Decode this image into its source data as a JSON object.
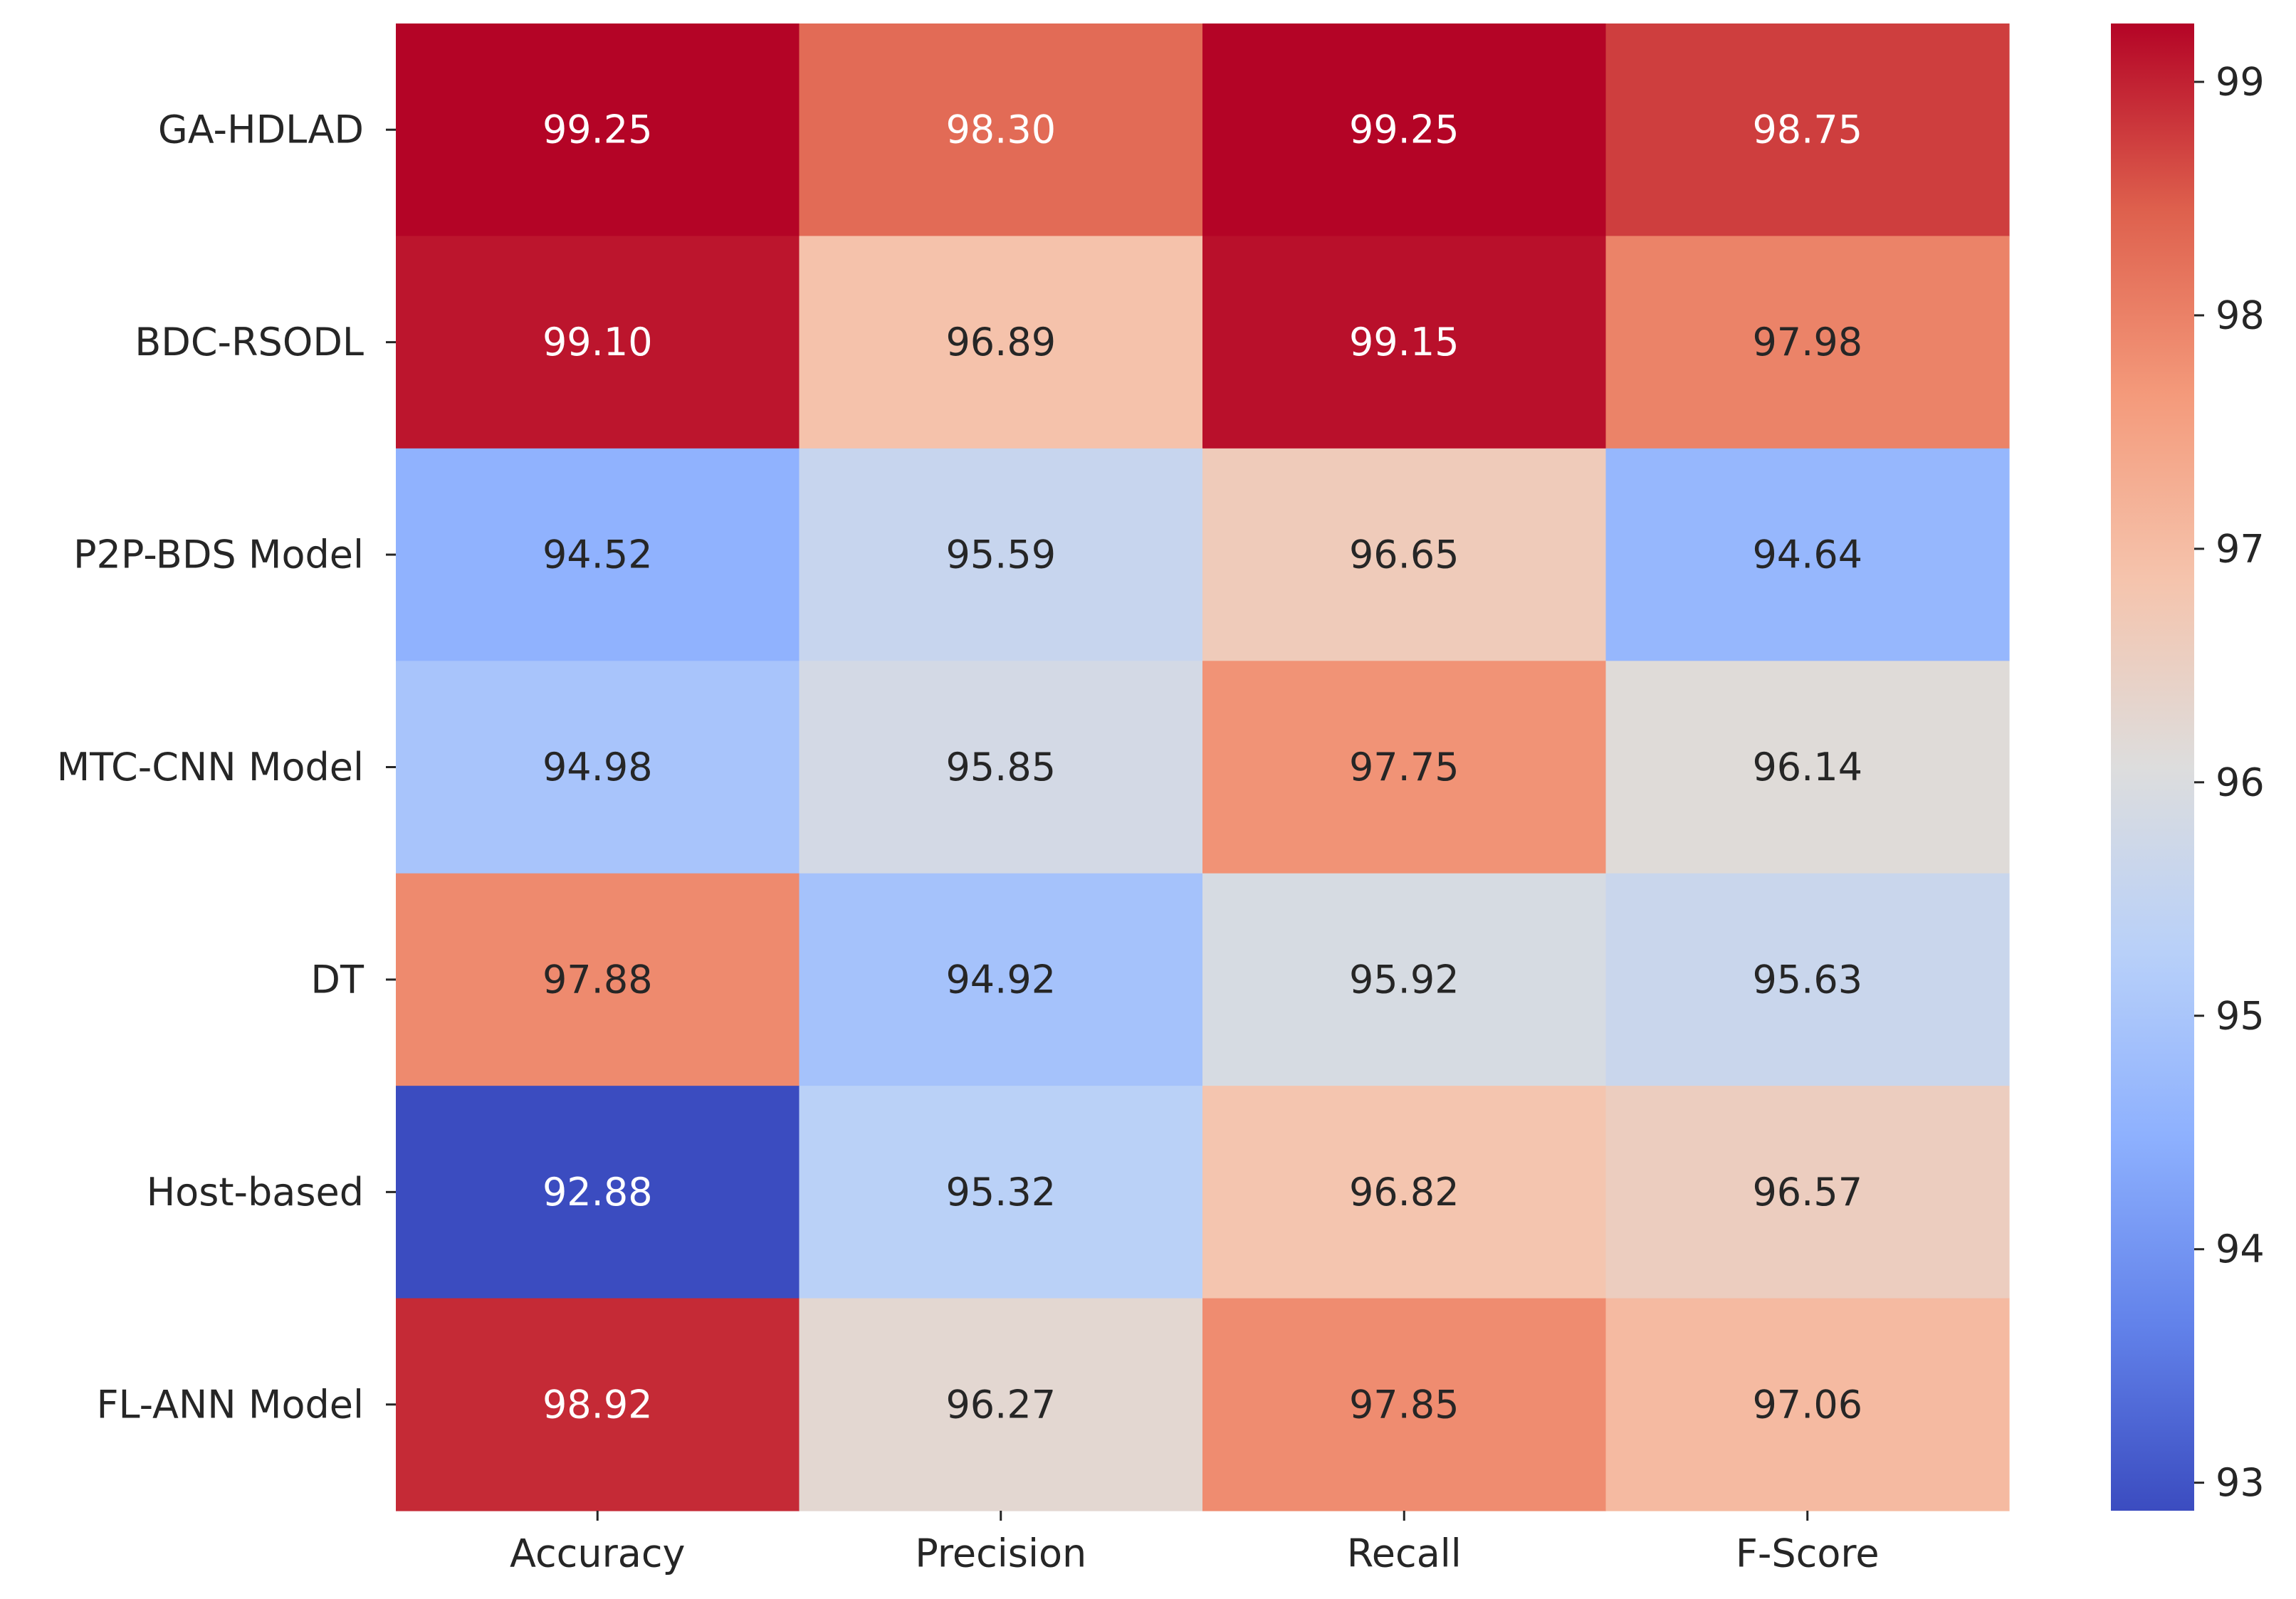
{
  "chart_data": {
    "type": "heatmap",
    "title": "",
    "xlabel": "",
    "ylabel": "",
    "columns": [
      "Accuracy",
      "Precision",
      "Recall",
      "F-Score"
    ],
    "rows": [
      "GA-HDLAD",
      "BDC-RSODL",
      "P2P-BDS Model",
      "MTC-CNN Model",
      "DT",
      "Host-based",
      "FL-ANN Model"
    ],
    "values": [
      [
        99.25,
        98.3,
        99.25,
        98.75
      ],
      [
        99.1,
        96.89,
        99.15,
        97.98
      ],
      [
        94.52,
        95.59,
        96.65,
        94.64
      ],
      [
        94.98,
        95.85,
        97.75,
        96.14
      ],
      [
        97.88,
        94.92,
        95.92,
        95.63
      ],
      [
        92.88,
        95.32,
        96.82,
        96.57
      ],
      [
        98.92,
        96.27,
        97.85,
        97.06
      ]
    ],
    "annotations": [
      [
        "99.25",
        "98.30",
        "99.25",
        "98.75"
      ],
      [
        "99.10",
        "96.89",
        "99.15",
        "97.98"
      ],
      [
        "94.52",
        "95.59",
        "96.65",
        "94.64"
      ],
      [
        "94.98",
        "95.85",
        "97.75",
        "96.14"
      ],
      [
        "97.88",
        "94.92",
        "95.92",
        "95.63"
      ],
      [
        "92.88",
        "95.32",
        "96.82",
        "96.57"
      ],
      [
        "98.92",
        "96.27",
        "97.85",
        "97.06"
      ]
    ],
    "colormap": "coolwarm",
    "vmin": 92.88,
    "vmax": 99.25,
    "colorbar": {
      "ticks": [
        93,
        94,
        95,
        96,
        97,
        98,
        99
      ],
      "tick_labels": [
        "93",
        "94",
        "95",
        "96",
        "97",
        "98",
        "99"
      ],
      "position": "right"
    },
    "palette": {
      "low": "#3b4cc0",
      "mid": "#dddddd",
      "high": "#b40426"
    }
  }
}
